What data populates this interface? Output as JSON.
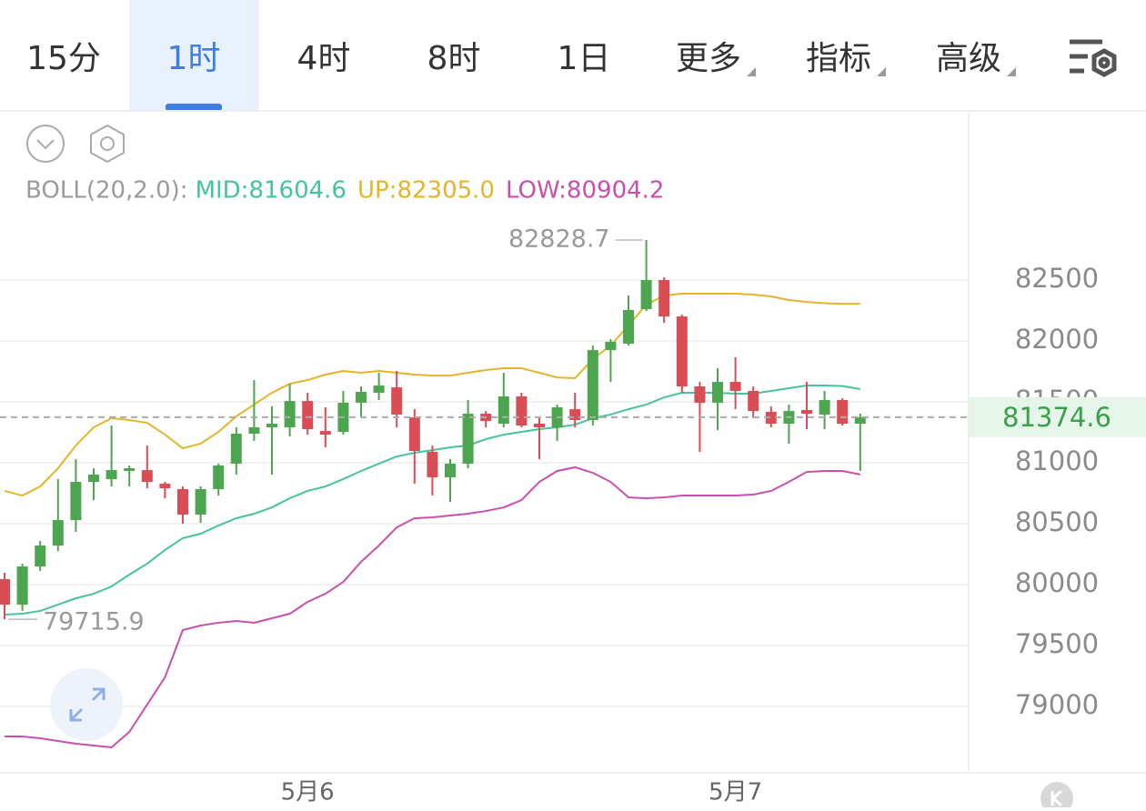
{
  "tabs": [
    {
      "label": "15分",
      "dropdown": false
    },
    {
      "label": "1时",
      "dropdown": false
    },
    {
      "label": "4时",
      "dropdown": false
    },
    {
      "label": "8时",
      "dropdown": false
    },
    {
      "label": "1日",
      "dropdown": false
    },
    {
      "label": "更多",
      "dropdown": true
    },
    {
      "label": "指标",
      "dropdown": true
    },
    {
      "label": "高级",
      "dropdown": true
    }
  ],
  "active_tab": 1,
  "chart_data": {
    "type": "candlestick",
    "indicator_title": "BOLL(20,2.0):",
    "x": [
      null,
      null,
      null,
      null,
      null,
      null,
      null,
      null,
      null,
      null,
      null,
      null,
      null,
      null,
      null,
      null,
      null,
      "5月6",
      null,
      null,
      null,
      null,
      null,
      null,
      null,
      null,
      null,
      null,
      null,
      null,
      null,
      null,
      null,
      null,
      null,
      null,
      null,
      null,
      null,
      null,
      null,
      "5月7",
      null,
      null,
      null,
      null,
      null,
      null,
      null
    ],
    "candles": {
      "up_color": "#4ea54f",
      "down_color": "#d94d55",
      "open": [
        80045,
        79836,
        80149,
        80321,
        80530,
        80843,
        80866,
        80933,
        80940,
        80828,
        80784,
        80575,
        80784,
        80993,
        81239,
        81291,
        81291,
        81507,
        81261,
        81254,
        81493,
        81575,
        81619,
        81373,
        81090,
        80881,
        80993,
        81403,
        81321,
        81545,
        81321,
        81291,
        81440,
        81351,
        81925,
        81978,
        82261,
        82500,
        82201,
        81627,
        81493,
        81664,
        81590,
        81418,
        81321,
        81433,
        81396,
        81515,
        81321
      ],
      "high": [
        80097,
        80172,
        80358,
        80866,
        81030,
        80955,
        81306,
        80978,
        81142,
        80843,
        80806,
        80806,
        80993,
        81291,
        81679,
        81463,
        81649,
        81575,
        81455,
        81590,
        81627,
        81739,
        81754,
        81440,
        81142,
        81030,
        81515,
        81425,
        81739,
        81575,
        81366,
        81478,
        81575,
        81963,
        82015,
        82373,
        82828.7,
        82522,
        82216,
        81664,
        81776,
        81866,
        81627,
        81463,
        81478,
        81664,
        81590,
        81530,
        81403
      ],
      "low": [
        79715.9,
        79784,
        80112,
        80276,
        80433,
        80694,
        80806,
        80806,
        80791,
        80709,
        80500,
        80507,
        80731,
        80903,
        81179,
        80903,
        81216,
        81231,
        81127,
        81231,
        81381,
        81515,
        81291,
        80828,
        80731,
        80679,
        80955,
        81291,
        81291,
        81291,
        81030,
        81179,
        81291,
        81306,
        81664,
        81963,
        82246,
        82149,
        81575,
        81090,
        81269,
        81440,
        81366,
        81291,
        81157,
        81276,
        81276,
        81306,
        80933
      ],
      "close": [
        79836,
        80149,
        80321,
        80530,
        80843,
        80903,
        80940,
        80955,
        80843,
        80791,
        80575,
        80784,
        80978,
        81239,
        81291,
        81321,
        81507,
        81276,
        81231,
        81493,
        81582,
        81634,
        81396,
        81097,
        80881,
        80993,
        81403,
        81343,
        81545,
        81306,
        81291,
        81455,
        81351,
        81925,
        81993,
        82254,
        82500,
        82201,
        81627,
        81493,
        81664,
        81590,
        81425,
        81321,
        81425,
        81403,
        81515,
        81321,
        81374.6
      ]
    },
    "max_index": 36,
    "min_index": 0,
    "series": [
      {
        "name": "MID:81604.6",
        "color": "#45c39e",
        "values": [
          79754,
          79761,
          79784,
          79836,
          79888,
          79925,
          79985,
          80082,
          80172,
          80284,
          80381,
          80418,
          80485,
          80545,
          80582,
          80634,
          80709,
          80769,
          80806,
          80866,
          80933,
          80993,
          81052,
          81082,
          81104,
          81127,
          81142,
          81194,
          81231,
          81254,
          81276,
          81291,
          81313,
          81366,
          81396,
          81440,
          81478,
          81537,
          81575,
          81575,
          81575,
          81567,
          81567,
          81590,
          81612,
          81634,
          81634,
          81630,
          81604.6
        ]
      },
      {
        "name": "UP:82305.0",
        "color": "#e3b52a",
        "values": [
          80769,
          80731,
          80806,
          80955,
          81142,
          81291,
          81366,
          81351,
          81328,
          81231,
          81119,
          81157,
          81254,
          81381,
          81478,
          81575,
          81649,
          81679,
          81724,
          81754,
          81739,
          81754,
          81739,
          81724,
          81716,
          81716,
          81739,
          81761,
          81776,
          81776,
          81739,
          81701,
          81694,
          81851,
          81963,
          82127,
          82299,
          82373,
          82388,
          82388,
          82388,
          82388,
          82381,
          82366,
          82336,
          82320,
          82310,
          82305,
          82305.0
        ]
      },
      {
        "name": "LOW:80904.2",
        "color": "#c94fae",
        "values": [
          78754,
          78754,
          78739,
          78716,
          78694,
          78679,
          78664,
          78791,
          79015,
          79239,
          79627,
          79664,
          79687,
          79701,
          79687,
          79724,
          79761,
          79858,
          79925,
          80022,
          80187,
          80321,
          80470,
          80545,
          80552,
          80567,
          80582,
          80604,
          80634,
          80694,
          80843,
          80933,
          80963,
          80918,
          80843,
          80716,
          80709,
          80716,
          80731,
          80731,
          80731,
          80731,
          80739,
          80769,
          80843,
          80925,
          80933,
          80933,
          80904.2
        ]
      }
    ],
    "ylim": [
      78470,
      83866
    ],
    "yticks": [
      79000,
      79500,
      80000,
      80500,
      81000,
      81500,
      82000,
      82500
    ],
    "grid": true,
    "last_price_color": "#3aa04a"
  }
}
